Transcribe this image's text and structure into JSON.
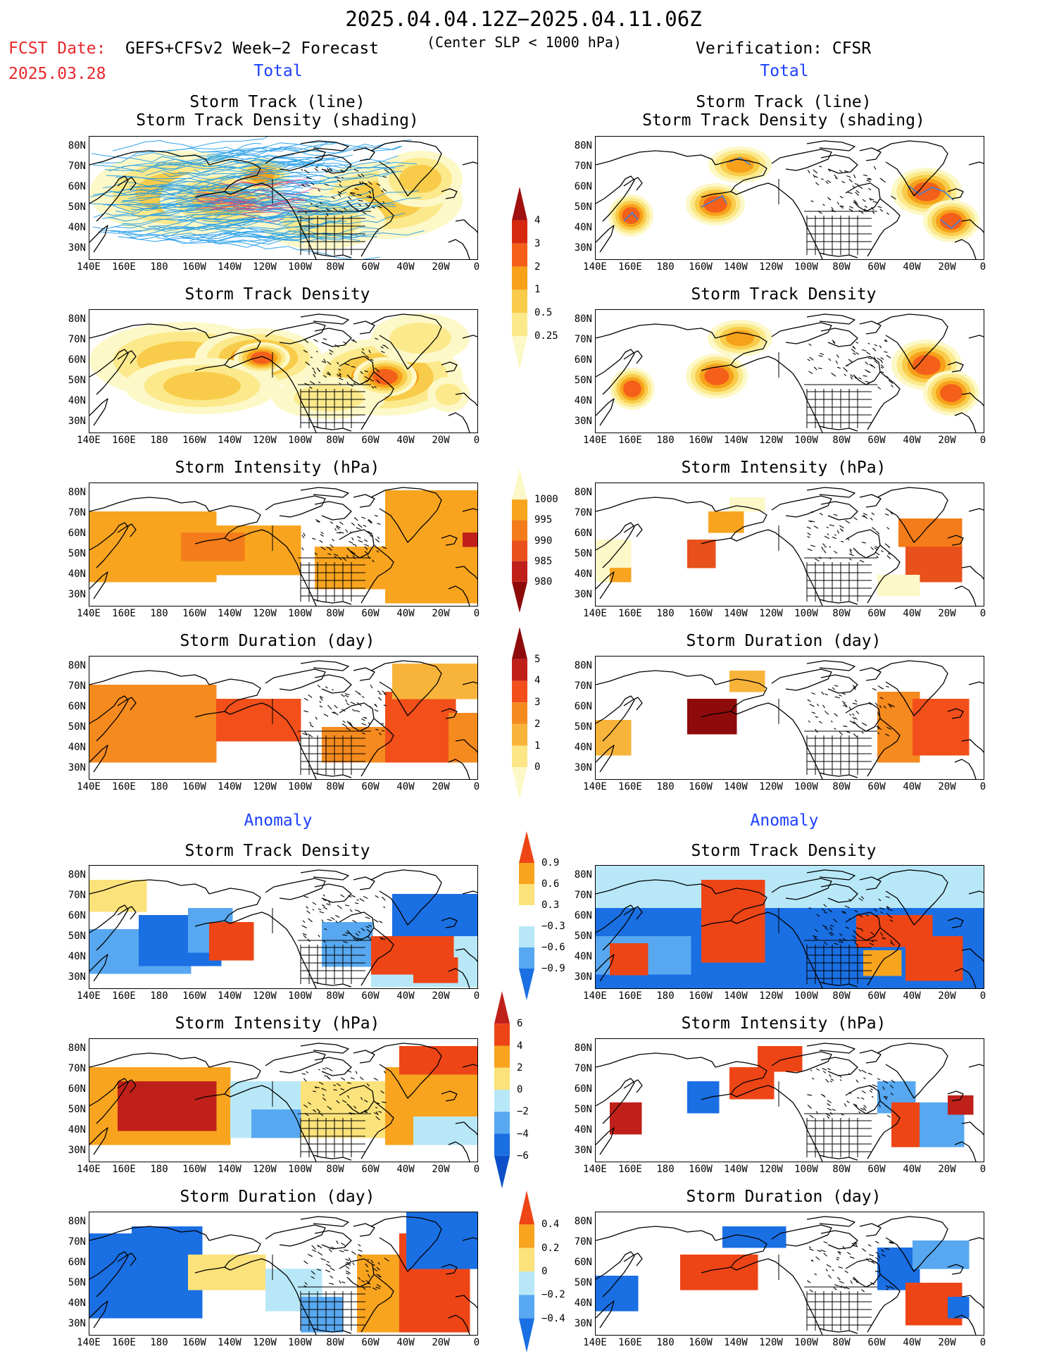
{
  "header": {
    "title": "2025.04.04.12Z−2025.04.11.06Z",
    "fcst_label": "FCST Date:",
    "fcst_date": "2025.03.28",
    "model": "GEFS+CFSv2 Week−2 Forecast",
    "center_criterion": "(Center SLP < 1000 hPa)",
    "verification": "Verification: CFSR"
  },
  "sections": {
    "total": "Total",
    "anomaly": "Anomaly"
  },
  "panel_titles": {
    "track_line": "Storm Track (line)",
    "track_shading": "Storm Track Density (shading)",
    "density": "Storm Track Density",
    "intensity": "Storm Intensity (hPa)",
    "duration": "Storm Duration (day)"
  },
  "lat_labels": [
    "80N",
    "70N",
    "60N",
    "50N",
    "40N",
    "30N"
  ],
  "lon_labels": [
    "140E",
    "160E",
    "180",
    "160W",
    "140W",
    "120W",
    "100W",
    "80W",
    "60W",
    "40W",
    "20W",
    "0"
  ],
  "colorbars": {
    "density_total": {
      "labels": [
        "4",
        "3",
        "2",
        "1",
        "0.5",
        "0.25"
      ],
      "colors": [
        "#a01010",
        "#d62a10",
        "#f4601a",
        "#f7a11a",
        "#f8cc4a",
        "#fbe98c",
        "#fdf8c8"
      ]
    },
    "intensity_total": {
      "labels": [
        "1000",
        "995",
        "990",
        "985",
        "980"
      ],
      "colors": [
        "#fdf8c8",
        "#f8a41f",
        "#f47c1a",
        "#e8511b",
        "#c0201a",
        "#8e0b0b"
      ]
    },
    "duration_total": {
      "labels": [
        "5",
        "4",
        "3",
        "2",
        "1",
        "0"
      ],
      "colors": [
        "#8e0b0b",
        "#c0201a",
        "#f24f1b",
        "#f58a1e",
        "#f8b43a",
        "#fce685",
        "#fdf8c8"
      ]
    },
    "density_anom": {
      "labels": [
        "0.9",
        "0.6",
        "0.3",
        "−0.3",
        "−0.6",
        "−0.9"
      ],
      "colors": [
        "#ee4516",
        "#f8a41f",
        "#fbe27a",
        "#ffffff",
        "#b8e8f8",
        "#57a8f0",
        "#1a6fe3"
      ]
    },
    "intensity_anom": {
      "labels": [
        "6",
        "4",
        "2",
        "0",
        "−2",
        "−4",
        "−6"
      ],
      "colors": [
        "#c0201a",
        "#ee4516",
        "#f8a41f",
        "#fbe27a",
        "#b8e8f8",
        "#57a8f0",
        "#1a6fe3",
        "#0c4fc8"
      ]
    },
    "duration_anom": {
      "labels": [
        "0.4",
        "0.2",
        "0",
        "−0.2",
        "−0.4"
      ],
      "colors": [
        "#ee4516",
        "#f8a41f",
        "#fbe27a",
        "#b8e8f8",
        "#57a8f0",
        "#1a6fe3"
      ]
    }
  }
}
